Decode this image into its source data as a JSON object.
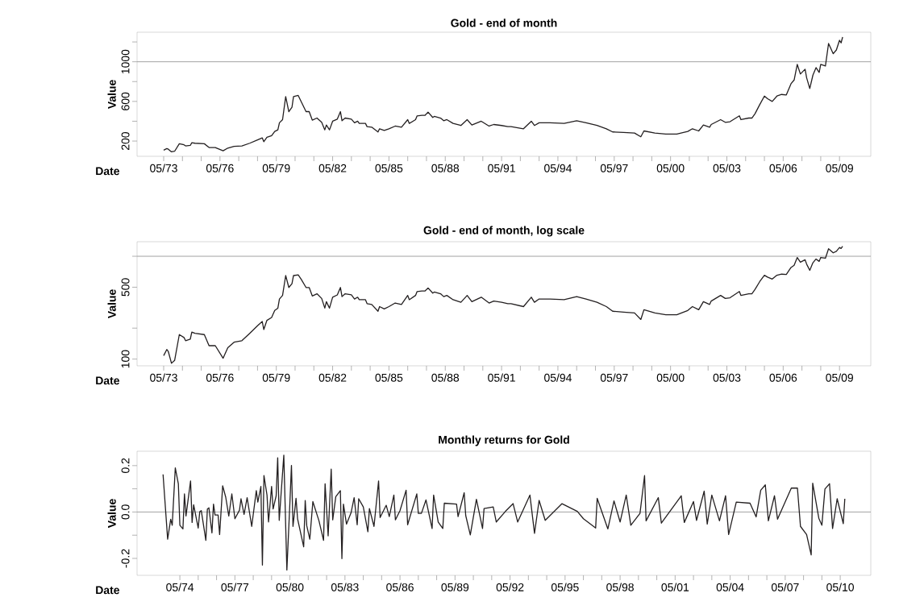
{
  "chart_data": [
    {
      "type": "line",
      "title": "Gold - end of month",
      "xlabel": "Date",
      "ylabel": "Value",
      "xlim": [
        "1971-12",
        "2011-01"
      ],
      "xticks": [
        {
          "value": "1973-05",
          "label": "05/73"
        },
        {
          "value": "1974-05",
          "label": null
        },
        {
          "value": "1975-05",
          "label": null
        },
        {
          "value": "1976-05",
          "label": "05/76"
        },
        {
          "value": "1977-05",
          "label": null
        },
        {
          "value": "1978-05",
          "label": null
        },
        {
          "value": "1979-05",
          "label": "05/79"
        },
        {
          "value": "1980-05",
          "label": null
        },
        {
          "value": "1981-05",
          "label": null
        },
        {
          "value": "1982-05",
          "label": "05/82"
        },
        {
          "value": "1983-05",
          "label": null
        },
        {
          "value": "1984-05",
          "label": null
        },
        {
          "value": "1985-05",
          "label": "05/85"
        },
        {
          "value": "1986-05",
          "label": null
        },
        {
          "value": "1987-05",
          "label": null
        },
        {
          "value": "1988-05",
          "label": "05/88"
        },
        {
          "value": "1989-05",
          "label": null
        },
        {
          "value": "1990-05",
          "label": null
        },
        {
          "value": "1991-05",
          "label": "05/91"
        },
        {
          "value": "1992-05",
          "label": null
        },
        {
          "value": "1993-05",
          "label": null
        },
        {
          "value": "1994-05",
          "label": "05/94"
        },
        {
          "value": "1995-05",
          "label": null
        },
        {
          "value": "1996-05",
          "label": null
        },
        {
          "value": "1997-05",
          "label": "05/97"
        },
        {
          "value": "1998-05",
          "label": null
        },
        {
          "value": "1999-05",
          "label": null
        },
        {
          "value": "2000-05",
          "label": "05/00"
        },
        {
          "value": "2001-05",
          "label": null
        },
        {
          "value": "2002-05",
          "label": null
        },
        {
          "value": "2003-05",
          "label": "05/03"
        },
        {
          "value": "2004-05",
          "label": null
        },
        {
          "value": "2005-05",
          "label": null
        },
        {
          "value": "2006-05",
          "label": "05/06"
        },
        {
          "value": "2007-05",
          "label": null
        },
        {
          "value": "2008-05",
          "label": null
        },
        {
          "value": "2009-05",
          "label": "05/09"
        }
      ],
      "ylim": [
        46,
        1298
      ],
      "yticks": [
        200,
        {
          "value": 400,
          "label": null
        },
        600,
        {
          "value": 800,
          "label": null
        },
        1000,
        {
          "value": 1200,
          "label": null
        }
      ],
      "ref_lines": [
        {
          "axis": "y",
          "value": 1000,
          "color": "#999999"
        }
      ],
      "series": [
        {
          "color": "#231f20",
          "x": [
            "1973-05",
            "1973-07",
            "1973-08",
            "1973-10",
            "1973-12",
            "1974-03",
            "1974-06",
            "1974-07",
            "1974-10",
            "1974-11",
            "1975-01",
            "1975-07",
            "1975-10",
            "1976-02",
            "1976-07",
            "1976-10",
            "1977-02",
            "1977-07",
            "1977-12",
            "1978-05",
            "1978-08",
            "1978-09",
            "1978-11",
            "1979-02",
            "1979-04",
            "1979-06",
            "1979-07",
            "1979-09",
            "1979-11",
            "1980-01",
            "1980-03",
            "1980-04",
            "1980-07",
            "1980-09",
            "1980-12",
            "1981-02",
            "1981-04",
            "1981-07",
            "1981-10",
            "1981-12",
            "1982-01",
            "1982-03",
            "1982-05",
            "1982-08",
            "1982-10",
            "1982-11",
            "1983-01",
            "1983-05",
            "1983-07",
            "1983-09",
            "1983-10",
            "1984-02",
            "1984-03",
            "1984-06",
            "1984-10",
            "1984-11",
            "1985-02",
            "1985-05",
            "1985-09",
            "1986-01",
            "1986-05",
            "1986-06",
            "1986-10",
            "1986-11",
            "1987-02",
            "1987-04",
            "1987-06",
            "1987-09",
            "1987-10",
            "1988-02",
            "1988-04",
            "1988-06",
            "1988-10",
            "1989-03",
            "1989-07",
            "1989-10",
            "1990-04",
            "1990-09",
            "1990-12",
            "1991-05",
            "1991-09",
            "1991-11",
            "1992-07",
            "1992-12",
            "1993-02",
            "1993-05",
            "1993-12",
            "1994-09",
            "1995-05",
            "1995-11",
            "1996-06",
            "1996-12",
            "1997-04",
            "1997-11",
            "1998-06",
            "1998-10",
            "1998-12",
            "1999-07",
            "2000-02",
            "2000-09",
            "2001-04",
            "2001-07",
            "2001-11",
            "2002-02",
            "2002-06",
            "2002-07",
            "2003-01",
            "2003-04",
            "2003-07",
            "2004-01",
            "2004-02",
            "2004-07",
            "2004-09",
            "2004-11",
            "2005-02",
            "2005-05",
            "2005-07",
            "2005-10",
            "2006-01",
            "2006-04",
            "2006-07",
            "2006-10",
            "2006-12",
            "2007-02",
            "2007-04",
            "2007-07",
            "2007-08",
            "2007-10",
            "2007-12",
            "2008-02",
            "2008-04",
            "2008-05",
            "2008-08",
            "2008-10",
            "2009-01",
            "2009-03",
            "2009-05",
            "2009-06",
            "2009-07"
          ],
          "values": [
            108,
            124,
            118,
            91,
            97,
            173,
            162,
            151,
            156,
            183,
            178,
            173,
            135,
            135,
            102,
            129,
            146,
            151,
            178,
            211,
            232,
            194,
            238,
            254,
            297,
            313,
            384,
            416,
            649,
            497,
            540,
            649,
            660,
            595,
            497,
            497,
            411,
            432,
            389,
            313,
            362,
            313,
            400,
            421,
            497,
            405,
            432,
            421,
            384,
            400,
            378,
            378,
            346,
            340,
            292,
            324,
            308,
            324,
            351,
            340,
            416,
            378,
            416,
            454,
            459,
            459,
            492,
            438,
            449,
            432,
            405,
            416,
            378,
            357,
            416,
            362,
            400,
            351,
            367,
            357,
            346,
            346,
            324,
            400,
            357,
            384,
            384,
            378,
            405,
            384,
            357,
            324,
            292,
            286,
            281,
            243,
            302,
            281,
            270,
            270,
            297,
            324,
            302,
            362,
            340,
            367,
            416,
            389,
            395,
            454,
            416,
            432,
            432,
            476,
            567,
            654,
            627,
            600,
            654,
            670,
            665,
            778,
            816,
            973,
            876,
            925,
            838,
            730,
            865,
            941,
            892,
            973,
            957,
            1184,
            1081,
            1119,
            1217,
            1190,
            1249
          ]
        }
      ]
    },
    {
      "type": "line",
      "title": "Gold - end of month, log scale",
      "xlabel": "Date",
      "ylabel": "Value",
      "log": true,
      "xlim": [
        "1971-12",
        "2011-01"
      ],
      "xticks": [
        {
          "value": "1973-05",
          "label": "05/73"
        },
        {
          "value": "1974-05",
          "label": null
        },
        {
          "value": "1975-05",
          "label": null
        },
        {
          "value": "1976-05",
          "label": "05/76"
        },
        {
          "value": "1977-05",
          "label": null
        },
        {
          "value": "1978-05",
          "label": null
        },
        {
          "value": "1979-05",
          "label": "05/79"
        },
        {
          "value": "1980-05",
          "label": null
        },
        {
          "value": "1981-05",
          "label": null
        },
        {
          "value": "1982-05",
          "label": "05/82"
        },
        {
          "value": "1983-05",
          "label": null
        },
        {
          "value": "1984-05",
          "label": null
        },
        {
          "value": "1985-05",
          "label": "05/85"
        },
        {
          "value": "1986-05",
          "label": null
        },
        {
          "value": "1987-05",
          "label": null
        },
        {
          "value": "1988-05",
          "label": "05/88"
        },
        {
          "value": "1989-05",
          "label": null
        },
        {
          "value": "1990-05",
          "label": null
        },
        {
          "value": "1991-05",
          "label": "05/91"
        },
        {
          "value": "1992-05",
          "label": null
        },
        {
          "value": "1993-05",
          "label": null
        },
        {
          "value": "1994-05",
          "label": "05/94"
        },
        {
          "value": "1995-05",
          "label": null
        },
        {
          "value": "1996-05",
          "label": null
        },
        {
          "value": "1997-05",
          "label": "05/97"
        },
        {
          "value": "1998-05",
          "label": null
        },
        {
          "value": "1999-05",
          "label": null
        },
        {
          "value": "2000-05",
          "label": "05/00"
        },
        {
          "value": "2001-05",
          "label": null
        },
        {
          "value": "2002-05",
          "label": null
        },
        {
          "value": "2003-05",
          "label": "05/03"
        },
        {
          "value": "2004-05",
          "label": null
        },
        {
          "value": "2005-05",
          "label": null
        },
        {
          "value": "2006-05",
          "label": "05/06"
        },
        {
          "value": "2007-05",
          "label": null
        },
        {
          "value": "2008-05",
          "label": null
        },
        {
          "value": "2009-05",
          "label": "05/09"
        }
      ],
      "ylim": [
        86,
        1385
      ],
      "yticks": [
        100,
        {
          "value": 200,
          "label": null
        },
        500,
        {
          "value": 1000,
          "label": null
        }
      ],
      "ref_lines": [
        {
          "axis": "y",
          "value": 1000,
          "color": "#999999"
        }
      ],
      "series": [
        {
          "color": "#231f20",
          "x": [
            "1973-05",
            "1973-07",
            "1973-08",
            "1973-10",
            "1973-12",
            "1974-03",
            "1974-06",
            "1974-07",
            "1974-10",
            "1974-11",
            "1975-01",
            "1975-07",
            "1975-10",
            "1976-02",
            "1976-07",
            "1976-10",
            "1977-02",
            "1977-07",
            "1977-12",
            "1978-05",
            "1978-08",
            "1978-09",
            "1978-11",
            "1979-02",
            "1979-04",
            "1979-06",
            "1979-07",
            "1979-09",
            "1979-11",
            "1980-01",
            "1980-03",
            "1980-04",
            "1980-07",
            "1980-09",
            "1980-12",
            "1981-02",
            "1981-04",
            "1981-07",
            "1981-10",
            "1981-12",
            "1982-01",
            "1982-03",
            "1982-05",
            "1982-08",
            "1982-10",
            "1982-11",
            "1983-01",
            "1983-05",
            "1983-07",
            "1983-09",
            "1983-10",
            "1984-02",
            "1984-03",
            "1984-06",
            "1984-10",
            "1984-11",
            "1985-02",
            "1985-05",
            "1985-09",
            "1986-01",
            "1986-05",
            "1986-06",
            "1986-10",
            "1986-11",
            "1987-02",
            "1987-04",
            "1987-06",
            "1987-09",
            "1987-10",
            "1988-02",
            "1988-04",
            "1988-06",
            "1988-10",
            "1989-03",
            "1989-07",
            "1989-10",
            "1990-04",
            "1990-09",
            "1990-12",
            "1991-05",
            "1991-09",
            "1991-11",
            "1992-07",
            "1992-12",
            "1993-02",
            "1993-05",
            "1993-12",
            "1994-09",
            "1995-05",
            "1995-11",
            "1996-06",
            "1996-12",
            "1997-04",
            "1997-11",
            "1998-06",
            "1998-10",
            "1998-12",
            "1999-07",
            "2000-02",
            "2000-09",
            "2001-04",
            "2001-07",
            "2001-11",
            "2002-02",
            "2002-06",
            "2002-07",
            "2003-01",
            "2003-04",
            "2003-07",
            "2004-01",
            "2004-02",
            "2004-07",
            "2004-09",
            "2004-11",
            "2005-02",
            "2005-05",
            "2005-07",
            "2005-10",
            "2006-01",
            "2006-04",
            "2006-07",
            "2006-10",
            "2006-12",
            "2007-02",
            "2007-04",
            "2007-07",
            "2007-08",
            "2007-10",
            "2007-12",
            "2008-02",
            "2008-04",
            "2008-05",
            "2008-08",
            "2008-10",
            "2009-01",
            "2009-03",
            "2009-05",
            "2009-06",
            "2009-07"
          ],
          "values": [
            108,
            124,
            118,
            91,
            97,
            173,
            162,
            151,
            156,
            183,
            178,
            173,
            135,
            135,
            102,
            129,
            146,
            151,
            178,
            211,
            232,
            194,
            238,
            254,
            297,
            313,
            384,
            416,
            649,
            497,
            540,
            649,
            660,
            595,
            497,
            497,
            411,
            432,
            389,
            313,
            362,
            313,
            400,
            421,
            497,
            405,
            432,
            421,
            384,
            400,
            378,
            378,
            346,
            340,
            292,
            324,
            308,
            324,
            351,
            340,
            416,
            378,
            416,
            454,
            459,
            459,
            492,
            438,
            449,
            432,
            405,
            416,
            378,
            357,
            416,
            362,
            400,
            351,
            367,
            357,
            346,
            346,
            324,
            400,
            357,
            384,
            384,
            378,
            405,
            384,
            357,
            324,
            292,
            286,
            281,
            243,
            302,
            281,
            270,
            270,
            297,
            324,
            302,
            362,
            340,
            367,
            416,
            389,
            395,
            454,
            416,
            432,
            432,
            476,
            567,
            654,
            627,
            600,
            654,
            670,
            665,
            778,
            816,
            973,
            876,
            925,
            838,
            730,
            865,
            941,
            892,
            973,
            957,
            1184,
            1081,
            1119,
            1217,
            1190,
            1249
          ]
        }
      ]
    },
    {
      "type": "line",
      "title": "Monthly returns for Gold",
      "xlabel": "Date",
      "ylabel": "Value",
      "xlim": [
        "1972-01",
        "2012-01"
      ],
      "xticks": [
        {
          "value": "1974-05",
          "label": "05/74"
        },
        {
          "value": "1975-05",
          "label": null
        },
        {
          "value": "1976-05",
          "label": null
        },
        {
          "value": "1977-05",
          "label": "05/77"
        },
        {
          "value": "1978-05",
          "label": null
        },
        {
          "value": "1979-05",
          "label": null
        },
        {
          "value": "1980-05",
          "label": "05/80"
        },
        {
          "value": "1981-05",
          "label": null
        },
        {
          "value": "1982-05",
          "label": null
        },
        {
          "value": "1983-05",
          "label": "05/83"
        },
        {
          "value": "1984-05",
          "label": null
        },
        {
          "value": "1985-05",
          "label": null
        },
        {
          "value": "1986-05",
          "label": "05/86"
        },
        {
          "value": "1987-05",
          "label": null
        },
        {
          "value": "1988-05",
          "label": null
        },
        {
          "value": "1989-05",
          "label": "05/89"
        },
        {
          "value": "1990-05",
          "label": null
        },
        {
          "value": "1991-05",
          "label": null
        },
        {
          "value": "1992-05",
          "label": "05/92"
        },
        {
          "value": "1993-05",
          "label": null
        },
        {
          "value": "1994-05",
          "label": null
        },
        {
          "value": "1995-05",
          "label": "05/95"
        },
        {
          "value": "1996-05",
          "label": null
        },
        {
          "value": "1997-05",
          "label": null
        },
        {
          "value": "1998-05",
          "label": "05/98"
        },
        {
          "value": "1999-05",
          "label": null
        },
        {
          "value": "2000-05",
          "label": null
        },
        {
          "value": "2001-05",
          "label": "05/01"
        },
        {
          "value": "2002-05",
          "label": null
        },
        {
          "value": "2003-05",
          "label": null
        },
        {
          "value": "2004-05",
          "label": "05/04"
        },
        {
          "value": "2005-05",
          "label": null
        },
        {
          "value": "2006-05",
          "label": null
        },
        {
          "value": "2007-05",
          "label": "05/07"
        },
        {
          "value": "2008-05",
          "label": null
        },
        {
          "value": "2009-05",
          "label": null
        },
        {
          "value": "2010-05",
          "label": "05/10"
        }
      ],
      "ylim": [
        -0.273,
        0.262
      ],
      "yticks": [
        0.2,
        {
          "value": 0.1,
          "label": null
        },
        {
          "value": 0,
          "label": "0.0"
        },
        {
          "value": -0.1,
          "label": null
        },
        -0.2
      ],
      "ref_lines": [
        {
          "axis": "y",
          "value": 0,
          "color": "#999999"
        }
      ],
      "series": [
        {
          "color": "#231f20",
          "x": [
            "1973-06",
            "1973-09",
            "1973-11",
            "1973-12",
            "1974-02",
            "1974-04",
            "1974-05",
            "1974-07",
            "1974-08",
            "1974-09",
            "1974-12",
            "1975-01",
            "1975-02",
            "1975-05",
            "1975-06",
            "1975-07",
            "1975-10",
            "1975-11",
            "1975-12",
            "1976-02",
            "1976-03",
            "1976-04",
            "1976-06",
            "1976-07",
            "1976-09",
            "1976-11",
            "1977-01",
            "1977-03",
            "1977-05",
            "1977-08",
            "1977-09",
            "1977-11",
            "1978-01",
            "1978-04",
            "1978-07",
            "1978-08",
            "1978-10",
            "1978-11",
            "1978-12",
            "1979-02",
            "1979-03",
            "1979-05",
            "1979-06",
            "1979-08",
            "1979-09",
            "1979-10",
            "1980-01",
            "1980-03",
            "1980-05",
            "1980-06",
            "1980-07",
            "1980-09",
            "1980-10",
            "1981-02",
            "1981-03",
            "1981-04",
            "1981-06",
            "1981-08",
            "1981-12",
            "1982-03",
            "1982-04",
            "1982-06",
            "1982-08",
            "1982-09",
            "1982-11",
            "1983-02",
            "1983-03",
            "1983-04",
            "1983-06",
            "1983-09",
            "1983-11",
            "1984-01",
            "1984-02",
            "1984-05",
            "1984-08",
            "1984-09",
            "1984-12",
            "1985-03",
            "1985-04",
            "1985-08",
            "1985-10",
            "1986-01",
            "1986-02",
            "1986-05",
            "1986-09",
            "1986-10",
            "1987-04",
            "1987-05",
            "1987-07",
            "1987-10",
            "1988-02",
            "1988-03",
            "1988-06",
            "1988-09",
            "1988-10",
            "1989-06",
            "1989-07",
            "1989-11",
            "1989-12",
            "1990-03",
            "1990-07",
            "1990-11",
            "1990-12",
            "1991-06",
            "1991-08",
            "1992-02",
            "1992-07",
            "1992-10",
            "1993-06",
            "1993-09",
            "1993-12",
            "1994-04",
            "1995-03",
            "1996-01",
            "1996-05",
            "1997-01",
            "1997-02",
            "1997-09",
            "1998-01",
            "1998-05",
            "1998-09",
            "1998-12",
            "1999-06",
            "1999-09",
            "1999-10",
            "2000-06",
            "2000-08",
            "2001-09",
            "2001-11",
            "2002-05",
            "2002-07",
            "2002-12",
            "2003-02",
            "2003-05",
            "2003-10",
            "2004-02",
            "2004-04",
            "2004-09",
            "2005-06",
            "2005-10",
            "2006-01",
            "2006-04",
            "2006-06",
            "2006-10",
            "2006-12",
            "2007-09",
            "2008-01",
            "2008-03",
            "2008-07",
            "2008-10",
            "2008-11",
            "2009-03",
            "2009-05",
            "2009-07",
            "2009-10",
            "2009-12",
            "2010-03",
            "2010-07",
            "2010-08"
          ],
          "values": [
            0.162,
            -0.117,
            -0.031,
            -0.057,
            0.19,
            0.122,
            -0.057,
            -0.073,
            0.078,
            -0.017,
            0.134,
            -0.045,
            0.031,
            -0.069,
            0.001,
            0.006,
            -0.122,
            0.013,
            0.018,
            -0.09,
            0.034,
            -0.013,
            -0.013,
            -0.097,
            0.113,
            0.064,
            -0.017,
            0.078,
            -0.029,
            0.008,
            0.057,
            -0.01,
            0.062,
            -0.062,
            0.092,
            0.043,
            0.11,
            -0.229,
            0.157,
            0.073,
            -0.043,
            0.11,
            0.013,
            0.07,
            0.234,
            -0.036,
            0.245,
            -0.25,
            0.043,
            0.201,
            -0.062,
            0.059,
            -0.029,
            -0.15,
            0.05,
            -0.059,
            -0.117,
            0.045,
            -0.038,
            -0.122,
            0.122,
            -0.103,
            0.185,
            -0.034,
            0.066,
            0.092,
            -0.201,
            0.034,
            -0.052,
            -0.003,
            0.062,
            -0.055,
            0.057,
            0.022,
            -0.085,
            0.015,
            -0.062,
            0.134,
            -0.024,
            0.029,
            -0.02,
            0.073,
            -0.034,
            0.006,
            0.094,
            -0.055,
            0.078,
            -0.006,
            -0.006,
            0.052,
            -0.071,
            0.073,
            -0.043,
            -0.071,
            0.038,
            0.034,
            -0.02,
            0.083,
            -0.015,
            -0.099,
            0.055,
            -0.071,
            0.015,
            0.022,
            -0.043,
            0.003,
            0.036,
            -0.043,
            0.073,
            -0.092,
            0.05,
            -0.036,
            0.036,
            0.003,
            -0.029,
            -0.069,
            0.059,
            -0.073,
            0.048,
            -0.043,
            0.073,
            -0.057,
            -0.006,
            0.157,
            -0.038,
            0.062,
            -0.048,
            0.07,
            -0.045,
            0.045,
            -0.036,
            0.09,
            -0.052,
            0.073,
            -0.038,
            0.07,
            -0.097,
            0.043,
            0.038,
            -0.021,
            0.094,
            0.117,
            -0.038,
            0.07,
            -0.031,
            0.103,
            0.103,
            -0.062,
            -0.097,
            -0.185,
            0.124,
            -0.027,
            -0.057,
            0.099,
            0.122,
            -0.071,
            0.057,
            -0.05,
            0.057
          ]
        }
      ]
    }
  ]
}
